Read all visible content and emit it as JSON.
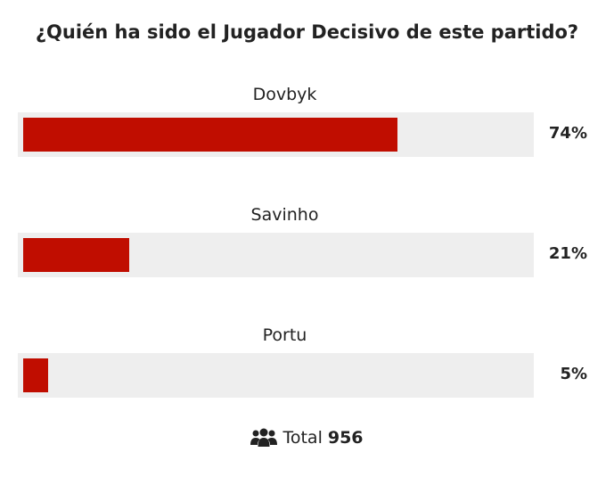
{
  "poll": {
    "title": "¿Quién ha sido el Jugador Decisivo de este partido?",
    "options": [
      {
        "label": "Dovbyk",
        "percent": 74,
        "percent_label": "74%"
      },
      {
        "label": "Savinho",
        "percent": 21,
        "percent_label": "21%"
      },
      {
        "label": "Portu",
        "percent": 5,
        "percent_label": "5%"
      }
    ],
    "total_label": "Total",
    "total_value": "956",
    "total_icon": "users-icon",
    "bar_color": "#c00d00",
    "track_color": "#eeeeee"
  }
}
